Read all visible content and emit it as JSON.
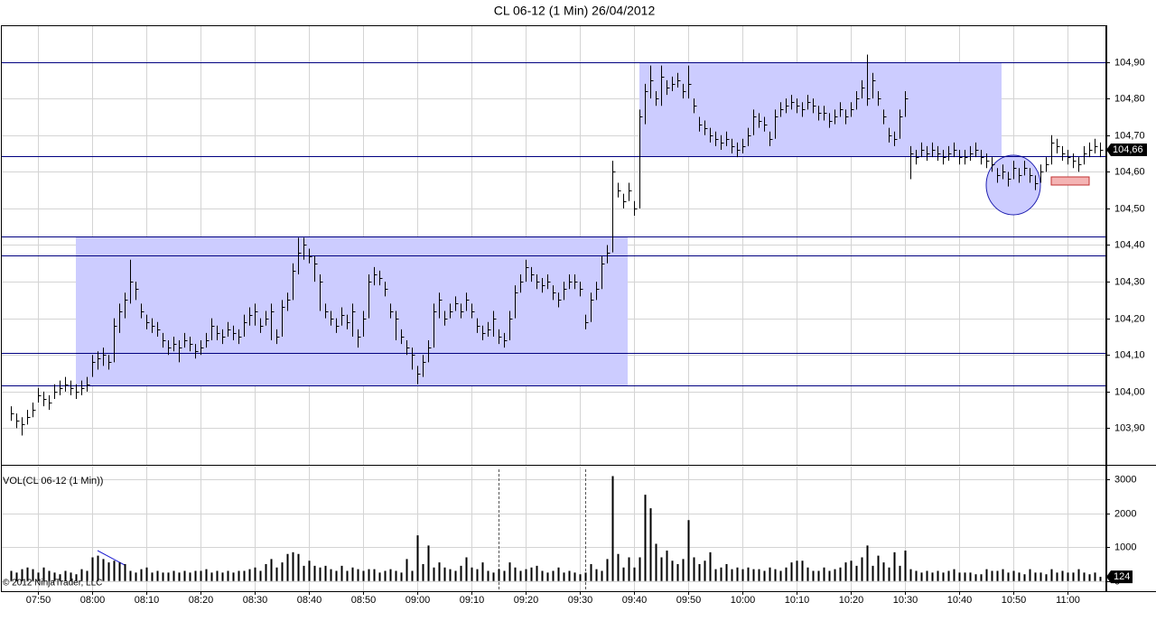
{
  "chart_data": {
    "type": "ohlc",
    "title": "CL 06-12 (1 Min)  26/04/2012",
    "x": [
      "07:45",
      "07:46",
      "07:47",
      "07:48",
      "07:49",
      "07:50",
      "07:51",
      "07:52",
      "07:53",
      "07:54",
      "07:55",
      "07:56",
      "07:57",
      "07:58",
      "07:59",
      "08:00",
      "08:01",
      "08:02",
      "08:03",
      "08:04",
      "08:05",
      "08:06",
      "08:07",
      "08:08",
      "08:09",
      "08:10",
      "08:11",
      "08:12",
      "08:13",
      "08:14",
      "08:15",
      "08:16",
      "08:17",
      "08:18",
      "08:19",
      "08:20",
      "08:21",
      "08:22",
      "08:23",
      "08:24",
      "08:25",
      "08:26",
      "08:27",
      "08:28",
      "08:29",
      "08:30",
      "08:31",
      "08:32",
      "08:33",
      "08:34",
      "08:35",
      "08:36",
      "08:37",
      "08:38",
      "08:39",
      "08:40",
      "08:41",
      "08:42",
      "08:43",
      "08:44",
      "08:45",
      "08:46",
      "08:47",
      "08:48",
      "08:49",
      "08:50",
      "08:51",
      "08:52",
      "08:53",
      "08:54",
      "08:55",
      "08:56",
      "08:57",
      "08:58",
      "08:59",
      "09:00",
      "09:01",
      "09:02",
      "09:03",
      "09:04",
      "09:05",
      "09:06",
      "09:07",
      "09:08",
      "09:09",
      "09:10",
      "09:11",
      "09:12",
      "09:13",
      "09:14",
      "09:15",
      "09:16",
      "09:17",
      "09:18",
      "09:19",
      "09:20",
      "09:21",
      "09:22",
      "09:23",
      "09:24",
      "09:25",
      "09:26",
      "09:27",
      "09:28",
      "09:29",
      "09:30",
      "09:31",
      "09:32",
      "09:33",
      "09:34",
      "09:35",
      "09:36",
      "09:37",
      "09:38",
      "09:39",
      "09:40",
      "09:41",
      "09:42",
      "09:43",
      "09:44",
      "09:45",
      "09:46",
      "09:47",
      "09:48",
      "09:49",
      "09:50",
      "09:51",
      "09:52",
      "09:53",
      "09:54",
      "09:55",
      "09:56",
      "09:57",
      "09:58",
      "09:59",
      "10:00",
      "10:01",
      "10:02",
      "10:03",
      "10:04",
      "10:05",
      "10:06",
      "10:07",
      "10:08",
      "10:09",
      "10:10",
      "10:11",
      "10:12",
      "10:13",
      "10:14",
      "10:15",
      "10:16",
      "10:17",
      "10:18",
      "10:19",
      "10:20",
      "10:21",
      "10:22",
      "10:23",
      "10:24",
      "10:25",
      "10:26",
      "10:27",
      "10:28",
      "10:29",
      "10:30",
      "10:31",
      "10:32",
      "10:33",
      "10:34",
      "10:35",
      "10:36",
      "10:37",
      "10:38",
      "10:39",
      "10:40",
      "10:41",
      "10:42",
      "10:43",
      "10:44",
      "10:45",
      "10:46",
      "10:47",
      "10:48",
      "10:49",
      "10:50",
      "10:51",
      "10:52",
      "10:53",
      "10:54",
      "10:55",
      "10:56",
      "10:57",
      "10:58",
      "10:59",
      "11:00",
      "11:01",
      "11:02",
      "11:03",
      "11:04",
      "11:05",
      "11:06"
    ],
    "series": [
      {
        "color": "#000000",
        "high": [
          103.96,
          103.94,
          103.93,
          103.95,
          103.97,
          104.01,
          104.0,
          103.99,
          104.02,
          104.03,
          104.04,
          104.03,
          104.02,
          104.03,
          104.04,
          104.1,
          104.11,
          104.12,
          104.1,
          104.2,
          104.24,
          104.27,
          104.36,
          104.3,
          104.24,
          104.21,
          104.2,
          104.19,
          104.16,
          104.14,
          104.15,
          104.14,
          104.16,
          104.15,
          104.13,
          104.14,
          104.16,
          104.2,
          104.18,
          104.17,
          104.19,
          104.18,
          104.17,
          104.21,
          104.23,
          104.24,
          104.2,
          104.22,
          104.24,
          104.17,
          104.25,
          104.27,
          104.35,
          104.42,
          104.42,
          104.39,
          104.37,
          104.32,
          104.24,
          104.22,
          104.2,
          104.23,
          104.21,
          104.24,
          104.17,
          104.22,
          104.32,
          104.34,
          104.33,
          104.3,
          104.24,
          104.22,
          104.17,
          104.14,
          104.12,
          104.07,
          104.1,
          104.14,
          104.24,
          104.27,
          104.22,
          104.24,
          104.26,
          104.24,
          104.27,
          104.24,
          104.2,
          104.18,
          104.19,
          104.22,
          104.17,
          104.16,
          104.22,
          104.29,
          104.32,
          104.36,
          104.34,
          104.32,
          104.31,
          104.32,
          104.29,
          104.27,
          104.3,
          104.32,
          104.32,
          104.3,
          104.21,
          104.27,
          104.3,
          104.37,
          104.4,
          104.63,
          104.57,
          104.54,
          104.57,
          104.52,
          104.77,
          104.84,
          104.89,
          104.82,
          104.89,
          104.85,
          104.86,
          104.87,
          104.84,
          104.89,
          104.8,
          104.75,
          104.74,
          104.72,
          104.71,
          104.7,
          104.71,
          104.69,
          104.68,
          104.69,
          104.72,
          104.77,
          104.76,
          104.75,
          104.71,
          104.77,
          104.79,
          104.8,
          104.81,
          104.8,
          104.79,
          104.81,
          104.8,
          104.78,
          104.78,
          104.76,
          104.77,
          104.79,
          104.77,
          104.79,
          104.82,
          104.85,
          104.92,
          104.87,
          104.82,
          104.77,
          104.72,
          104.71,
          104.77,
          104.82,
          104.67,
          104.66,
          104.68,
          104.67,
          104.68,
          104.67,
          104.66,
          104.67,
          104.68,
          104.66,
          104.66,
          104.67,
          104.68,
          104.66,
          104.65,
          104.64,
          104.61,
          104.62,
          104.6,
          104.63,
          104.61,
          104.63,
          104.61,
          104.59,
          104.62,
          104.64,
          104.7,
          104.69,
          104.67,
          104.66,
          104.65,
          104.64,
          104.67,
          104.68,
          104.69,
          104.68
        ],
        "low": [
          103.92,
          103.9,
          103.88,
          103.91,
          103.93,
          103.97,
          103.96,
          103.95,
          103.98,
          103.99,
          104.0,
          103.99,
          103.98,
          103.99,
          104.0,
          104.04,
          104.06,
          104.07,
          104.06,
          104.08,
          104.16,
          104.2,
          104.24,
          104.25,
          104.2,
          104.17,
          104.16,
          104.15,
          104.12,
          104.1,
          104.11,
          104.08,
          104.12,
          104.11,
          104.09,
          104.1,
          104.12,
          104.14,
          104.14,
          104.13,
          104.15,
          104.14,
          104.13,
          104.15,
          104.18,
          104.18,
          104.16,
          104.18,
          104.14,
          104.13,
          104.15,
          104.22,
          104.25,
          104.32,
          104.36,
          104.35,
          104.3,
          104.22,
          104.2,
          104.18,
          104.16,
          104.18,
          104.17,
          104.15,
          104.12,
          104.15,
          104.2,
          104.29,
          104.29,
          104.26,
          104.2,
          104.14,
          104.13,
          104.1,
          104.06,
          104.02,
          104.04,
          104.08,
          104.12,
          104.2,
          104.18,
          104.2,
          104.22,
          104.2,
          104.22,
          104.2,
          104.16,
          104.14,
          104.15,
          104.15,
          104.13,
          104.12,
          104.14,
          104.2,
          104.27,
          104.3,
          104.3,
          104.28,
          104.27,
          104.28,
          104.25,
          104.23,
          104.25,
          104.28,
          104.28,
          104.26,
          104.17,
          104.19,
          104.25,
          104.28,
          104.35,
          104.38,
          104.53,
          104.5,
          104.52,
          104.48,
          104.5,
          104.73,
          104.8,
          104.78,
          104.78,
          104.81,
          104.82,
          104.83,
          104.8,
          104.8,
          104.76,
          104.71,
          104.7,
          104.68,
          104.67,
          104.66,
          104.67,
          104.65,
          104.64,
          104.65,
          104.67,
          104.7,
          104.72,
          104.71,
          104.67,
          104.69,
          104.75,
          104.76,
          104.77,
          104.76,
          104.75,
          104.77,
          104.76,
          104.74,
          104.74,
          104.72,
          104.73,
          104.75,
          104.73,
          104.75,
          104.77,
          104.8,
          104.78,
          104.8,
          104.78,
          104.73,
          104.68,
          104.67,
          104.69,
          104.75,
          104.58,
          104.62,
          104.64,
          104.63,
          104.64,
          104.63,
          104.62,
          104.63,
          104.64,
          104.62,
          104.62,
          104.63,
          104.64,
          104.62,
          104.61,
          104.6,
          104.57,
          104.58,
          104.56,
          104.58,
          104.57,
          104.59,
          104.57,
          104.55,
          104.57,
          104.6,
          104.62,
          104.65,
          104.63,
          104.62,
          104.61,
          104.6,
          104.62,
          104.64,
          104.65,
          104.64
        ],
        "close": [
          103.94,
          103.92,
          103.91,
          103.93,
          103.95,
          103.99,
          103.98,
          103.97,
          104.0,
          104.01,
          104.02,
          104.01,
          104.0,
          104.01,
          104.02,
          104.08,
          104.09,
          104.1,
          104.08,
          104.18,
          104.22,
          104.25,
          104.3,
          104.28,
          104.22,
          104.19,
          104.18,
          104.17,
          104.14,
          104.12,
          104.13,
          104.12,
          104.14,
          104.13,
          104.11,
          104.12,
          104.14,
          104.18,
          104.16,
          104.15,
          104.17,
          104.16,
          104.15,
          104.19,
          104.21,
          104.22,
          104.18,
          104.2,
          104.22,
          104.15,
          104.23,
          104.25,
          104.33,
          104.38,
          104.4,
          104.37,
          104.35,
          104.3,
          104.22,
          104.2,
          104.18,
          104.21,
          104.19,
          104.22,
          104.15,
          104.2,
          104.3,
          104.32,
          104.31,
          104.28,
          104.22,
          104.2,
          104.15,
          104.12,
          104.1,
          104.05,
          104.08,
          104.12,
          104.22,
          104.25,
          104.2,
          104.22,
          104.24,
          104.22,
          104.25,
          104.22,
          104.18,
          104.16,
          104.17,
          104.2,
          104.15,
          104.14,
          104.2,
          104.27,
          104.3,
          104.34,
          104.32,
          104.3,
          104.29,
          104.3,
          104.27,
          104.25,
          104.28,
          104.3,
          104.3,
          104.28,
          104.19,
          104.25,
          104.28,
          104.35,
          104.38,
          104.6,
          104.55,
          104.52,
          104.55,
          104.5,
          104.75,
          104.82,
          104.85,
          104.8,
          104.86,
          104.83,
          104.84,
          104.85,
          104.82,
          104.84,
          104.78,
          104.73,
          104.72,
          104.7,
          104.69,
          104.68,
          104.69,
          104.67,
          104.66,
          104.67,
          104.7,
          104.75,
          104.74,
          104.73,
          104.69,
          104.75,
          104.77,
          104.78,
          104.79,
          104.78,
          104.77,
          104.79,
          104.78,
          104.76,
          104.76,
          104.74,
          104.75,
          104.77,
          104.75,
          104.77,
          104.8,
          104.83,
          104.8,
          104.85,
          104.8,
          104.75,
          104.7,
          104.69,
          104.75,
          104.8,
          104.65,
          104.64,
          104.66,
          104.65,
          104.66,
          104.65,
          104.64,
          104.65,
          104.66,
          104.64,
          104.64,
          104.65,
          104.66,
          104.64,
          104.63,
          104.62,
          104.59,
          104.6,
          104.58,
          104.61,
          104.59,
          104.61,
          104.59,
          104.57,
          104.6,
          104.62,
          104.68,
          104.67,
          104.65,
          104.64,
          104.63,
          104.62,
          104.65,
          104.66,
          104.67,
          104.66
        ]
      }
    ],
    "ylim": [
      103.8,
      105.0
    ],
    "yticks": [
      {
        "value": 103.9,
        "label": "103,90"
      },
      {
        "value": 104.0,
        "label": "104,00"
      },
      {
        "value": 104.1,
        "label": "104,10"
      },
      {
        "value": 104.2,
        "label": "104,20"
      },
      {
        "value": 104.3,
        "label": "104,30"
      },
      {
        "value": 104.4,
        "label": "104,40"
      },
      {
        "value": 104.5,
        "label": "104,50"
      },
      {
        "value": 104.6,
        "label": "104,60"
      },
      {
        "value": 104.7,
        "label": "104,70"
      },
      {
        "value": 104.8,
        "label": "104,80"
      },
      {
        "value": 104.9,
        "label": "104,90"
      }
    ],
    "grid": true,
    "last_price": {
      "value": 104.66,
      "label": "104,66"
    },
    "volume": {
      "name": "VOL(CL 06-12 (1 Min))",
      "color": "#000000",
      "values": [
        300,
        250,
        350,
        400,
        350,
        250,
        400,
        300,
        250,
        200,
        300,
        250,
        200,
        350,
        300,
        700,
        750,
        650,
        550,
        600,
        550,
        500,
        300,
        250,
        350,
        400,
        250,
        300,
        250,
        250,
        300,
        250,
        300,
        250,
        300,
        300,
        350,
        250,
        300,
        250,
        300,
        250,
        300,
        300,
        350,
        400,
        300,
        500,
        650,
        400,
        550,
        800,
        850,
        800,
        450,
        600,
        450,
        400,
        450,
        350,
        300,
        450,
        300,
        400,
        350,
        300,
        350,
        350,
        250,
        300,
        350,
        300,
        250,
        650,
        300,
        1350,
        500,
        1050,
        400,
        550,
        400,
        350,
        300,
        450,
        700,
        400,
        350,
        550,
        300,
        250,
        350,
        300,
        550,
        400,
        300,
        350,
        400,
        450,
        300,
        250,
        300,
        400,
        250,
        300,
        250,
        200,
        250,
        500,
        350,
        300,
        650,
        3100,
        800,
        400,
        700,
        400,
        700,
        2550,
        2150,
        1100,
        700,
        900,
        600,
        500,
        650,
        1800,
        700,
        500,
        600,
        850,
        350,
        400,
        500,
        350,
        400,
        350,
        400,
        350,
        350,
        300,
        400,
        350,
        300,
        400,
        550,
        600,
        600,
        400,
        300,
        300,
        400,
        300,
        350,
        400,
        550,
        600,
        450,
        700,
        1050,
        450,
        750,
        550,
        400,
        850,
        450,
        900,
        350,
        300,
        250,
        300,
        250,
        300,
        250,
        300,
        350,
        250,
        250,
        250,
        200,
        200,
        350,
        300,
        300,
        350,
        250,
        300,
        250,
        200,
        350,
        250,
        250,
        200,
        350,
        250,
        300,
        250,
        250,
        350,
        250,
        200,
        250,
        124
      ],
      "ylim": [
        -300,
        3380
      ],
      "yticks": [
        0,
        1000,
        2000,
        3000
      ]
    },
    "copyright": "© 2012 NinjaTrader, LLC"
  }
}
